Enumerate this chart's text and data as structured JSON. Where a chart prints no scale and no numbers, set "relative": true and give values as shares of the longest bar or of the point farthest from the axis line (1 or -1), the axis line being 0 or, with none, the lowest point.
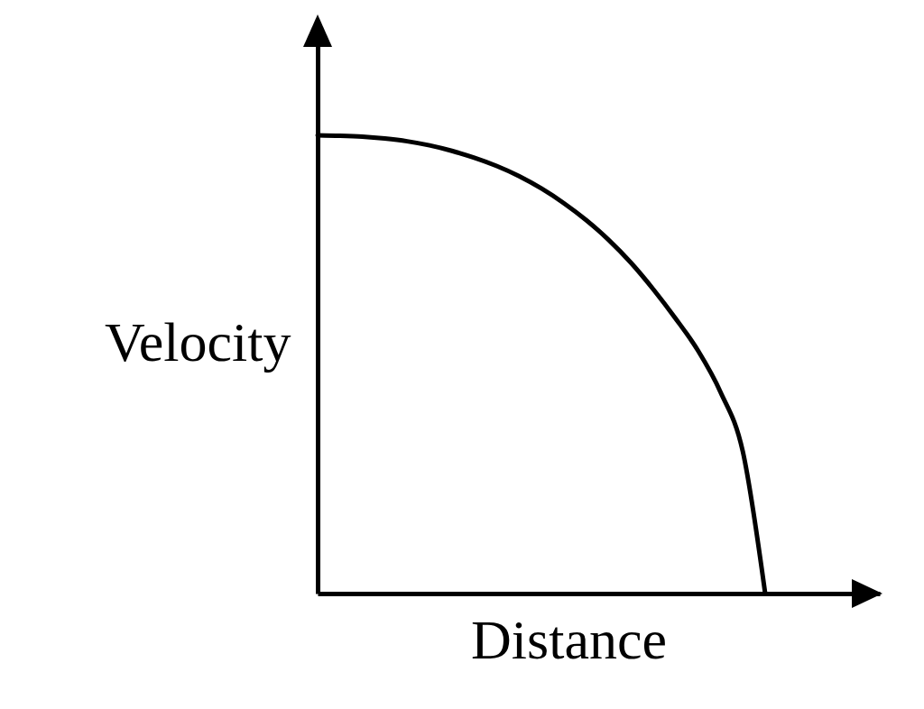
{
  "chart_data": {
    "type": "line",
    "xlabel": "Distance",
    "ylabel": "Velocity",
    "relative": true,
    "marker": "none",
    "line_style": "solid",
    "categories": [
      null,
      null,
      null,
      null,
      null,
      null,
      null,
      null,
      null,
      null,
      null,
      null,
      null,
      null,
      null,
      null,
      null,
      null,
      null,
      null,
      null
    ],
    "series": [
      {
        "color": "#000000",
        "values": [
          1,
          0.999,
          0.997,
          0.993,
          0.987,
          0.978,
          0.966,
          0.951,
          0.933,
          0.911,
          0.884,
          0.852,
          0.815,
          0.772,
          0.722,
          0.664,
          0.6,
          0.53,
          0.44,
          0.31,
          0
        ]
      }
    ]
  }
}
